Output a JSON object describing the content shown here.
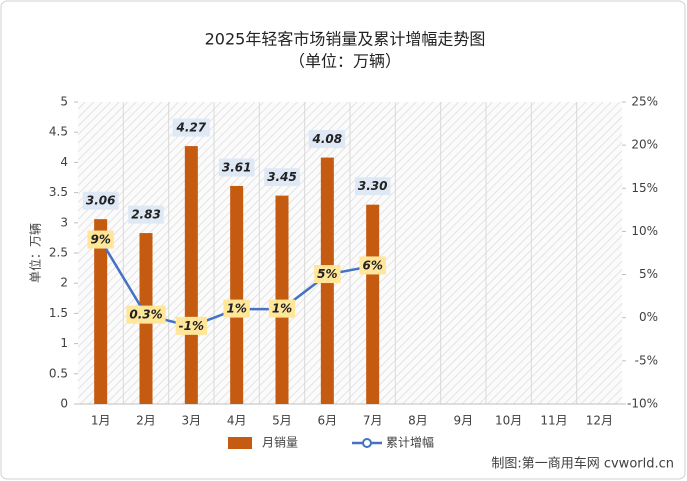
{
  "chart_data": {
    "type": "bar-line",
    "title": "2025年轻客市场销量及累计增幅走势图",
    "subtitle": "（单位：万辆）",
    "y_label": "单位：万辆",
    "source": "制图:第一商用车网 cvworld.cn",
    "categories": [
      "1月",
      "2月",
      "3月",
      "4月",
      "5月",
      "6月",
      "7月",
      "8月",
      "9月",
      "10月",
      "11月",
      "12月"
    ],
    "series": [
      {
        "name": "月销量",
        "type": "bar",
        "color": "#c55a11",
        "values": [
          3.06,
          2.83,
          4.27,
          3.61,
          3.45,
          4.08,
          3.3,
          null,
          null,
          null,
          null,
          null
        ],
        "value_labels": [
          "3.06",
          "2.83",
          "4.27",
          "3.61",
          "3.45",
          "4.08",
          "3.30",
          null,
          null,
          null,
          null,
          null
        ]
      },
      {
        "name": "累计增幅",
        "type": "line",
        "axis": "y2",
        "color": "#4472c4",
        "values": [
          9,
          0.3,
          -1,
          1,
          1,
          5,
          6,
          null,
          null,
          null,
          null,
          null
        ],
        "value_labels": [
          "9%",
          "0.3%",
          "-1%",
          "1%",
          "1%",
          "5%",
          "6%",
          null,
          null,
          null,
          null,
          null
        ]
      }
    ],
    "ylim": [
      0,
      5
    ],
    "yticks": [
      0,
      0.5,
      1,
      1.5,
      2,
      2.5,
      3,
      3.5,
      4,
      4.5,
      5
    ],
    "y2lim": [
      -10,
      25
    ],
    "y2ticks": [
      {
        "value": -10,
        "label": "-10%"
      },
      {
        "value": -5,
        "label": "-5%"
      },
      {
        "value": 0,
        "label": "0%"
      },
      {
        "value": 5,
        "label": "5%"
      },
      {
        "value": 10,
        "label": "10%"
      },
      {
        "value": 15,
        "label": "15%"
      },
      {
        "value": 20,
        "label": "20%"
      },
      {
        "value": 25,
        "label": "25%"
      }
    ],
    "grid": false,
    "legend": "bottom"
  }
}
